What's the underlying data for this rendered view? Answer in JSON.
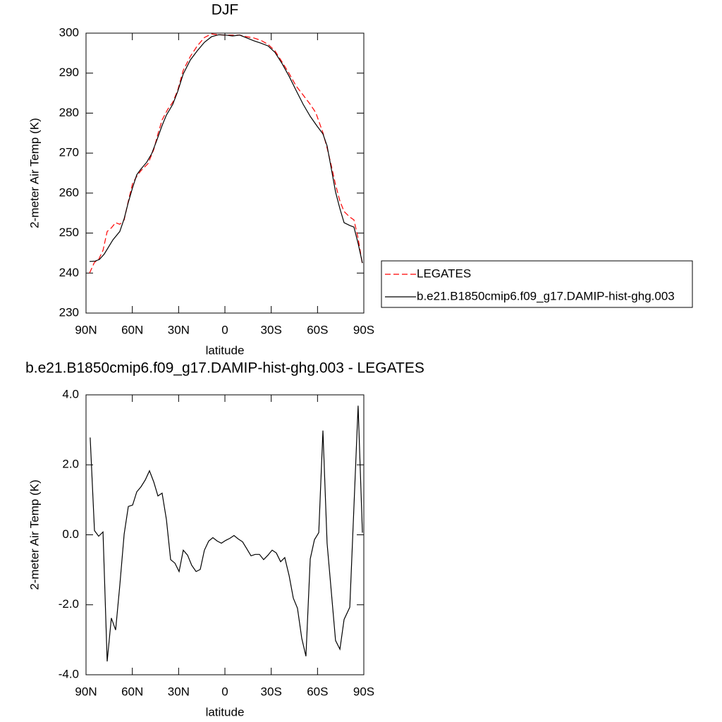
{
  "chart_data": [
    {
      "type": "line",
      "title": "DJF",
      "xlabel": "latitude",
      "ylabel": "2-meter Air Temp (K)",
      "xlim": [
        90,
        -90
      ],
      "xticks": [
        {
          "value": 90,
          "label": "90N"
        },
        {
          "value": 60,
          "label": "60N"
        },
        {
          "value": 30,
          "label": "30N"
        },
        0,
        {
          "value": -30,
          "label": "30S"
        },
        {
          "value": -60,
          "label": "60S"
        },
        {
          "value": -90,
          "label": "90S"
        }
      ],
      "ylim": [
        230,
        300
      ],
      "yticks": [
        230,
        240,
        250,
        260,
        270,
        280,
        290,
        300
      ],
      "legend": "right",
      "series": [
        {
          "name": "LEGATES",
          "color": "#ff0000",
          "style": "dashed",
          "x": [
            87.7,
            84.5,
            81.8,
            79.0,
            76.3,
            73.6,
            70.8,
            68.1,
            65.3,
            62.6,
            59.8,
            57.1,
            54.4,
            49.8,
            46.1,
            43.4,
            40.7,
            37.0,
            33.8,
            30.6,
            27.0,
            22.4,
            17.9,
            13.3,
            8.7,
            4.1,
            -0.5,
            -5.0,
            -9.6,
            -14.2,
            -18.7,
            -23.3,
            -27.9,
            -32.4,
            -37.0,
            -41.6,
            -46.1,
            -50.7,
            -55.3,
            -58.9,
            -63.5,
            -66.2,
            -69.0,
            -71.7,
            -74.5,
            -77.2,
            -80.9,
            -83.6,
            -86.3,
            -89.1
          ],
          "values": [
            240.0,
            242.7,
            243.4,
            245.7,
            250.4,
            251.3,
            252.6,
            252.2,
            253.3,
            258.0,
            262.4,
            264.2,
            265.6,
            267.4,
            270.9,
            274.8,
            278.3,
            281.0,
            282.7,
            285.7,
            290.7,
            294.2,
            296.8,
            298.9,
            299.8,
            299.6,
            299.5,
            299.5,
            299.5,
            299.1,
            298.8,
            298.2,
            297.2,
            295.6,
            292.8,
            289.9,
            286.8,
            284.5,
            282.2,
            280.1,
            275.1,
            271.3,
            266.8,
            262.1,
            258.0,
            255.4,
            254.0,
            253.3,
            248.7,
            242.2
          ]
        },
        {
          "name": "b.e21.B1850cmip6.f09_g17.DAMIP-hist-ghg.003",
          "color": "#000000",
          "style": "solid",
          "x": [
            87.7,
            84.1,
            81.3,
            78.1,
            72.6,
            68.1,
            65.3,
            62.6,
            59.8,
            57.1,
            54.4,
            50.7,
            47.5,
            44.3,
            40.7,
            37.9,
            33.8,
            30.6,
            27.0,
            22.4,
            17.9,
            13.3,
            8.7,
            4.1,
            -0.5,
            -5.0,
            -9.6,
            -14.2,
            -18.7,
            -23.3,
            -27.9,
            -32.4,
            -37.0,
            -41.6,
            -46.1,
            -50.7,
            -55.3,
            -59.8,
            -63.5,
            -66.2,
            -69.0,
            -71.7,
            -74.5,
            -77.2,
            -80.9,
            -83.6,
            -86.3,
            -89.1
          ],
          "values": [
            242.9,
            243.0,
            243.4,
            244.8,
            248.3,
            250.4,
            253.6,
            257.7,
            261.4,
            264.6,
            266.0,
            267.7,
            269.8,
            273.0,
            276.9,
            279.5,
            282.2,
            285.4,
            289.8,
            293.3,
            295.6,
            297.7,
            299.1,
            299.6,
            299.5,
            299.3,
            299.5,
            298.8,
            298.1,
            297.5,
            296.8,
            295.2,
            292.4,
            289.2,
            285.7,
            282.2,
            279.2,
            276.7,
            274.8,
            271.8,
            266.0,
            260.3,
            256.1,
            252.6,
            251.9,
            251.5,
            247.4,
            242.5
          ]
        }
      ]
    },
    {
      "type": "line",
      "title": "b.e21.B1850cmip6.f09_g17.DAMIP-hist-ghg.003 - LEGATES",
      "xlabel": "latitude",
      "ylabel": "2-meter Air Temp (K)",
      "xlim": [
        90,
        -90
      ],
      "xticks": [
        {
          "value": 90,
          "label": "90N"
        },
        {
          "value": 60,
          "label": "60N"
        },
        {
          "value": 30,
          "label": "30N"
        },
        0,
        {
          "value": -30,
          "label": "30S"
        },
        {
          "value": -60,
          "label": "60S"
        },
        {
          "value": -90,
          "label": "90S"
        }
      ],
      "ylim": [
        -4,
        4
      ],
      "yticks": [
        {
          "value": -4,
          "label": "-4.0"
        },
        {
          "value": -2,
          "label": "-2.0"
        },
        {
          "value": 0,
          "label": "0.0"
        },
        {
          "value": 2,
          "label": "2.0"
        },
        {
          "value": 4,
          "label": "4.0"
        }
      ],
      "color": "#000000",
      "x": [
        87.3,
        84.5,
        81.8,
        79.0,
        76.3,
        73.6,
        70.8,
        68.1,
        65.3,
        62.6,
        59.8,
        57.1,
        54.4,
        51.6,
        48.9,
        46.1,
        43.4,
        40.7,
        37.9,
        35.2,
        32.4,
        29.7,
        27.0,
        24.2,
        21.5,
        18.7,
        16.0,
        13.3,
        10.5,
        7.8,
        5.0,
        2.3,
        -0.5,
        -3.2,
        -5.9,
        -8.7,
        -11.4,
        -14.2,
        -16.9,
        -19.6,
        -22.4,
        -25.1,
        -27.9,
        -30.6,
        -33.3,
        -36.1,
        -38.8,
        -41.6,
        -44.3,
        -47.0,
        -49.8,
        -52.5,
        -55.3,
        -58.0,
        -60.8,
        -63.5,
        -66.2,
        -69.0,
        -71.7,
        -74.5,
        -77.2,
        -80.9,
        -86.3,
        -89.1
      ],
      "values": [
        2.78,
        0.12,
        -0.04,
        0.08,
        -3.62,
        -2.38,
        -2.72,
        -1.45,
        0.02,
        0.81,
        0.85,
        1.23,
        1.37,
        1.57,
        1.83,
        1.51,
        1.11,
        1.19,
        0.44,
        -0.71,
        -0.81,
        -1.05,
        -0.44,
        -0.58,
        -0.87,
        -1.05,
        -0.99,
        -0.44,
        -0.18,
        -0.08,
        -0.18,
        -0.24,
        -0.16,
        -0.1,
        -0.02,
        -0.12,
        -0.2,
        -0.4,
        -0.6,
        -0.56,
        -0.56,
        -0.71,
        -0.58,
        -0.44,
        -0.52,
        -0.77,
        -0.65,
        -1.17,
        -1.81,
        -2.1,
        -2.96,
        -3.47,
        -0.69,
        -0.14,
        0.06,
        2.98,
        -0.24,
        -1.65,
        -3.02,
        -3.27,
        -2.42,
        -2.07,
        3.69,
        0.06
      ]
    }
  ]
}
